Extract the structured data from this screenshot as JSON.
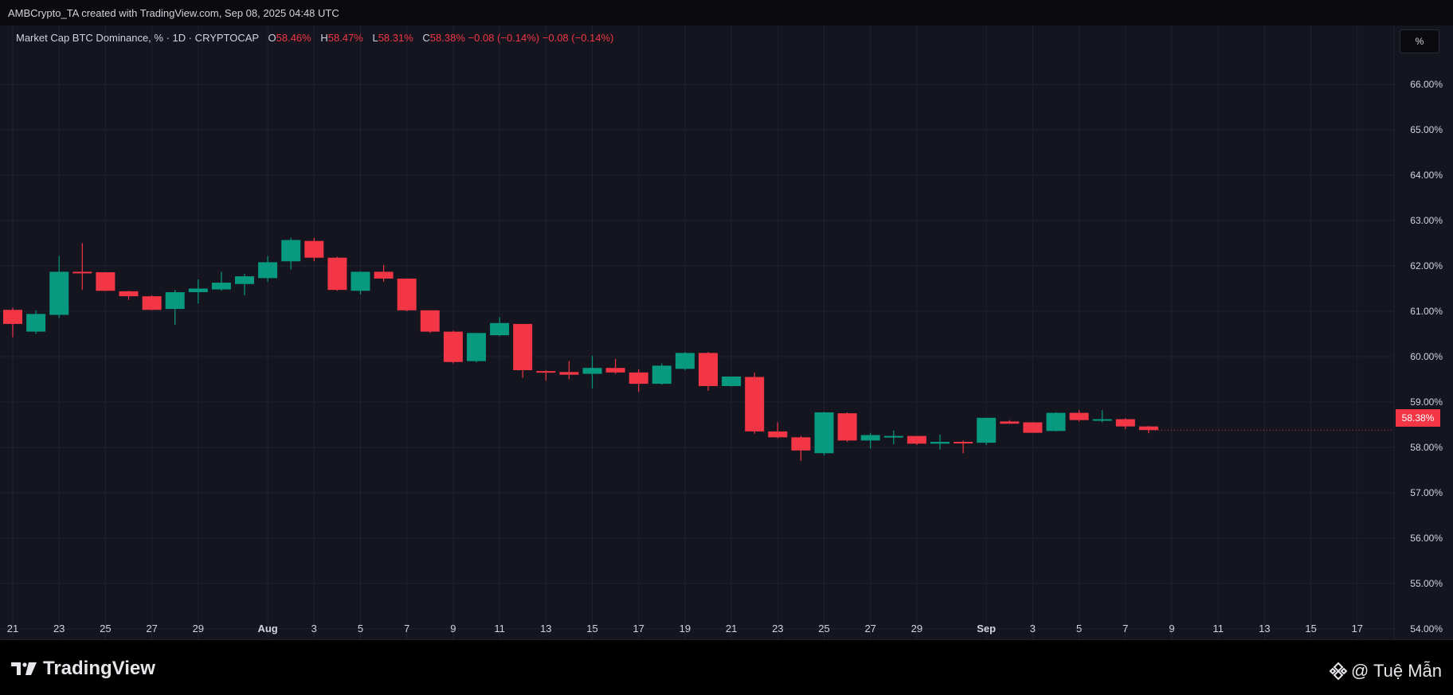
{
  "header": {
    "attribution": "AMBCrypto_TA created with TradingView.com, Sep 08, 2025 04:48 UTC"
  },
  "legend": {
    "symbol": "Market Cap BTC Dominance, % · 1D · CRYPTOCAP",
    "open_label": "O",
    "open_value": "58.46%",
    "high_label": "H",
    "high_value": "58.47%",
    "low_label": "L",
    "low_value": "58.31%",
    "close_label": "C",
    "close_value": "58.38%",
    "change": "−0.08 (−0.14%)",
    "change2": "−0.08 (−0.14%)"
  },
  "scale_button": "%",
  "price_badge": "58.38%",
  "footer": {
    "logo_text": "TradingView",
    "watermark": "@ Tuệ Mẫn"
  },
  "colors": {
    "up": "#089981",
    "down": "#f23645",
    "background": "#14151f",
    "grid": "#1f2230",
    "text": "#d1d4dc"
  },
  "icons": [
    "tradingview-logo-icon",
    "binance-diamond-icon"
  ],
  "chart_data": {
    "type": "candlestick",
    "title": "Market Cap BTC Dominance, % · 1D · CRYPTOCAP",
    "ylim": [
      53.75,
      67.3
    ],
    "y_ticks": [
      "66.00%",
      "65.00%",
      "64.00%",
      "63.00%",
      "62.00%",
      "61.00%",
      "60.00%",
      "59.00%",
      "58.00%",
      "57.00%",
      "56.00%",
      "55.00%",
      "54.00%"
    ],
    "y_tick_values": [
      66,
      65,
      64,
      63,
      62,
      61,
      60,
      59,
      58,
      57,
      56,
      55,
      54
    ],
    "x_ticks": [
      {
        "label": "21",
        "d": 0,
        "bold": false
      },
      {
        "label": "23",
        "d": 2,
        "bold": false
      },
      {
        "label": "25",
        "d": 4,
        "bold": false
      },
      {
        "label": "27",
        "d": 6,
        "bold": false
      },
      {
        "label": "29",
        "d": 8,
        "bold": false
      },
      {
        "label": "Aug",
        "d": 11,
        "bold": true
      },
      {
        "label": "3",
        "d": 13,
        "bold": false
      },
      {
        "label": "5",
        "d": 15,
        "bold": false
      },
      {
        "label": "7",
        "d": 17,
        "bold": false
      },
      {
        "label": "9",
        "d": 19,
        "bold": false
      },
      {
        "label": "11",
        "d": 21,
        "bold": false
      },
      {
        "label": "13",
        "d": 23,
        "bold": false
      },
      {
        "label": "15",
        "d": 25,
        "bold": false
      },
      {
        "label": "17",
        "d": 27,
        "bold": false
      },
      {
        "label": "19",
        "d": 29,
        "bold": false
      },
      {
        "label": "21",
        "d": 31,
        "bold": false
      },
      {
        "label": "23",
        "d": 33,
        "bold": false
      },
      {
        "label": "25",
        "d": 35,
        "bold": false
      },
      {
        "label": "27",
        "d": 37,
        "bold": false
      },
      {
        "label": "29",
        "d": 39,
        "bold": false
      },
      {
        "label": "Sep",
        "d": 42,
        "bold": true
      },
      {
        "label": "3",
        "d": 44,
        "bold": false
      },
      {
        "label": "5",
        "d": 46,
        "bold": false
      },
      {
        "label": "7",
        "d": 48,
        "bold": false
      },
      {
        "label": "9",
        "d": 50,
        "bold": false
      },
      {
        "label": "11",
        "d": 52,
        "bold": false
      },
      {
        "label": "13",
        "d": 54,
        "bold": false
      },
      {
        "label": "15",
        "d": 56,
        "bold": false
      },
      {
        "label": "17",
        "d": 58,
        "bold": false
      }
    ],
    "candles": [
      {
        "date": "Jul 21",
        "d": 0,
        "o": 61.03,
        "h": 61.08,
        "l": 60.43,
        "c": 60.72
      },
      {
        "date": "Jul 22",
        "d": 1,
        "o": 60.55,
        "h": 61.02,
        "l": 60.5,
        "c": 60.94
      },
      {
        "date": "Jul 23",
        "d": 2,
        "o": 60.92,
        "h": 62.22,
        "l": 60.85,
        "c": 61.87
      },
      {
        "date": "Jul 24",
        "d": 3,
        "o": 61.87,
        "h": 62.5,
        "l": 61.47,
        "c": 61.86
      },
      {
        "date": "Jul 25",
        "d": 4,
        "o": 61.86,
        "h": 61.86,
        "l": 61.45,
        "c": 61.45
      },
      {
        "date": "Jul 26",
        "d": 5,
        "o": 61.44,
        "h": 61.45,
        "l": 61.25,
        "c": 61.33
      },
      {
        "date": "Jul 27",
        "d": 6,
        "o": 61.33,
        "h": 61.35,
        "l": 61.02,
        "c": 61.03
      },
      {
        "date": "Jul 28",
        "d": 7,
        "o": 61.05,
        "h": 61.47,
        "l": 60.7,
        "c": 61.42
      },
      {
        "date": "Jul 29",
        "d": 8,
        "o": 61.42,
        "h": 61.7,
        "l": 61.17,
        "c": 61.5
      },
      {
        "date": "Jul 30",
        "d": 9,
        "o": 61.48,
        "h": 61.87,
        "l": 61.45,
        "c": 61.63
      },
      {
        "date": "Jul 31",
        "d": 10,
        "o": 61.6,
        "h": 61.82,
        "l": 61.35,
        "c": 61.77
      },
      {
        "date": "Aug 1",
        "d": 11,
        "o": 61.73,
        "h": 62.22,
        "l": 61.65,
        "c": 62.08
      },
      {
        "date": "Aug 2",
        "d": 12,
        "o": 62.1,
        "h": 62.62,
        "l": 61.92,
        "c": 62.57
      },
      {
        "date": "Aug 3",
        "d": 13,
        "o": 62.55,
        "h": 62.62,
        "l": 62.1,
        "c": 62.18
      },
      {
        "date": "Aug 4",
        "d": 14,
        "o": 62.18,
        "h": 62.2,
        "l": 61.45,
        "c": 61.47
      },
      {
        "date": "Aug 5",
        "d": 15,
        "o": 61.45,
        "h": 61.88,
        "l": 61.37,
        "c": 61.87
      },
      {
        "date": "Aug 6",
        "d": 16,
        "o": 61.87,
        "h": 62.02,
        "l": 61.65,
        "c": 61.72
      },
      {
        "date": "Aug 7",
        "d": 17,
        "o": 61.72,
        "h": 61.72,
        "l": 61.0,
        "c": 61.02
      },
      {
        "date": "Aug 8",
        "d": 18,
        "o": 61.02,
        "h": 61.02,
        "l": 60.52,
        "c": 60.55
      },
      {
        "date": "Aug 9",
        "d": 19,
        "o": 60.55,
        "h": 60.57,
        "l": 59.85,
        "c": 59.88
      },
      {
        "date": "Aug 10",
        "d": 20,
        "o": 59.9,
        "h": 60.52,
        "l": 59.87,
        "c": 60.52
      },
      {
        "date": "Aug 11",
        "d": 21,
        "o": 60.47,
        "h": 60.87,
        "l": 60.45,
        "c": 60.74
      },
      {
        "date": "Aug 12",
        "d": 22,
        "o": 60.72,
        "h": 60.72,
        "l": 59.53,
        "c": 59.7
      },
      {
        "date": "Aug 13",
        "d": 23,
        "o": 59.68,
        "h": 59.7,
        "l": 59.47,
        "c": 59.66
      },
      {
        "date": "Aug 14",
        "d": 24,
        "o": 59.66,
        "h": 59.9,
        "l": 59.5,
        "c": 59.6
      },
      {
        "date": "Aug 15",
        "d": 25,
        "o": 59.62,
        "h": 60.02,
        "l": 59.3,
        "c": 59.75
      },
      {
        "date": "Aug 16",
        "d": 26,
        "o": 59.75,
        "h": 59.95,
        "l": 59.62,
        "c": 59.65
      },
      {
        "date": "Aug 17",
        "d": 27,
        "o": 59.65,
        "h": 59.72,
        "l": 59.22,
        "c": 59.4
      },
      {
        "date": "Aug 18",
        "d": 28,
        "o": 59.4,
        "h": 59.85,
        "l": 59.38,
        "c": 59.8
      },
      {
        "date": "Aug 19",
        "d": 29,
        "o": 59.73,
        "h": 60.1,
        "l": 59.7,
        "c": 60.08
      },
      {
        "date": "Aug 20",
        "d": 30,
        "o": 60.08,
        "h": 60.1,
        "l": 59.25,
        "c": 59.35
      },
      {
        "date": "Aug 21",
        "d": 31,
        "o": 59.35,
        "h": 59.56,
        "l": 59.34,
        "c": 59.56
      },
      {
        "date": "Aug 22",
        "d": 32,
        "o": 59.55,
        "h": 59.65,
        "l": 58.3,
        "c": 58.35
      },
      {
        "date": "Aug 23",
        "d": 33,
        "o": 58.35,
        "h": 58.55,
        "l": 58.2,
        "c": 58.22
      },
      {
        "date": "Aug 24",
        "d": 34,
        "o": 58.22,
        "h": 58.25,
        "l": 57.7,
        "c": 57.93
      },
      {
        "date": "Aug 25",
        "d": 35,
        "o": 57.87,
        "h": 58.78,
        "l": 57.82,
        "c": 58.77
      },
      {
        "date": "Aug 26",
        "d": 36,
        "o": 58.75,
        "h": 58.77,
        "l": 58.12,
        "c": 58.15
      },
      {
        "date": "Aug 27",
        "d": 37,
        "o": 58.15,
        "h": 58.32,
        "l": 57.97,
        "c": 58.27
      },
      {
        "date": "Aug 28",
        "d": 38,
        "o": 58.25,
        "h": 58.37,
        "l": 58.07,
        "c": 58.25
      },
      {
        "date": "Aug 29",
        "d": 39,
        "o": 58.25,
        "h": 58.25,
        "l": 58.05,
        "c": 58.08
      },
      {
        "date": "Aug 30",
        "d": 40,
        "o": 58.08,
        "h": 58.28,
        "l": 57.95,
        "c": 58.12
      },
      {
        "date": "Aug 31",
        "d": 41,
        "o": 58.12,
        "h": 58.15,
        "l": 57.87,
        "c": 58.1
      },
      {
        "date": "Sep 1",
        "d": 42,
        "o": 58.1,
        "h": 58.65,
        "l": 58.05,
        "c": 58.65
      },
      {
        "date": "Sep 2",
        "d": 43,
        "o": 58.57,
        "h": 58.6,
        "l": 58.52,
        "c": 58.52
      },
      {
        "date": "Sep 3",
        "d": 44,
        "o": 58.55,
        "h": 58.55,
        "l": 58.32,
        "c": 58.32
      },
      {
        "date": "Sep 4",
        "d": 45,
        "o": 58.36,
        "h": 58.77,
        "l": 58.35,
        "c": 58.76
      },
      {
        "date": "Sep 5",
        "d": 46,
        "o": 58.76,
        "h": 58.82,
        "l": 58.57,
        "c": 58.6
      },
      {
        "date": "Sep 6",
        "d": 47,
        "o": 58.6,
        "h": 58.82,
        "l": 58.55,
        "c": 58.62
      },
      {
        "date": "Sep 7",
        "d": 48,
        "o": 58.62,
        "h": 58.64,
        "l": 58.4,
        "c": 58.46
      },
      {
        "date": "Sep 8",
        "d": 49,
        "o": 58.46,
        "h": 58.47,
        "l": 58.31,
        "c": 58.38
      }
    ]
  }
}
